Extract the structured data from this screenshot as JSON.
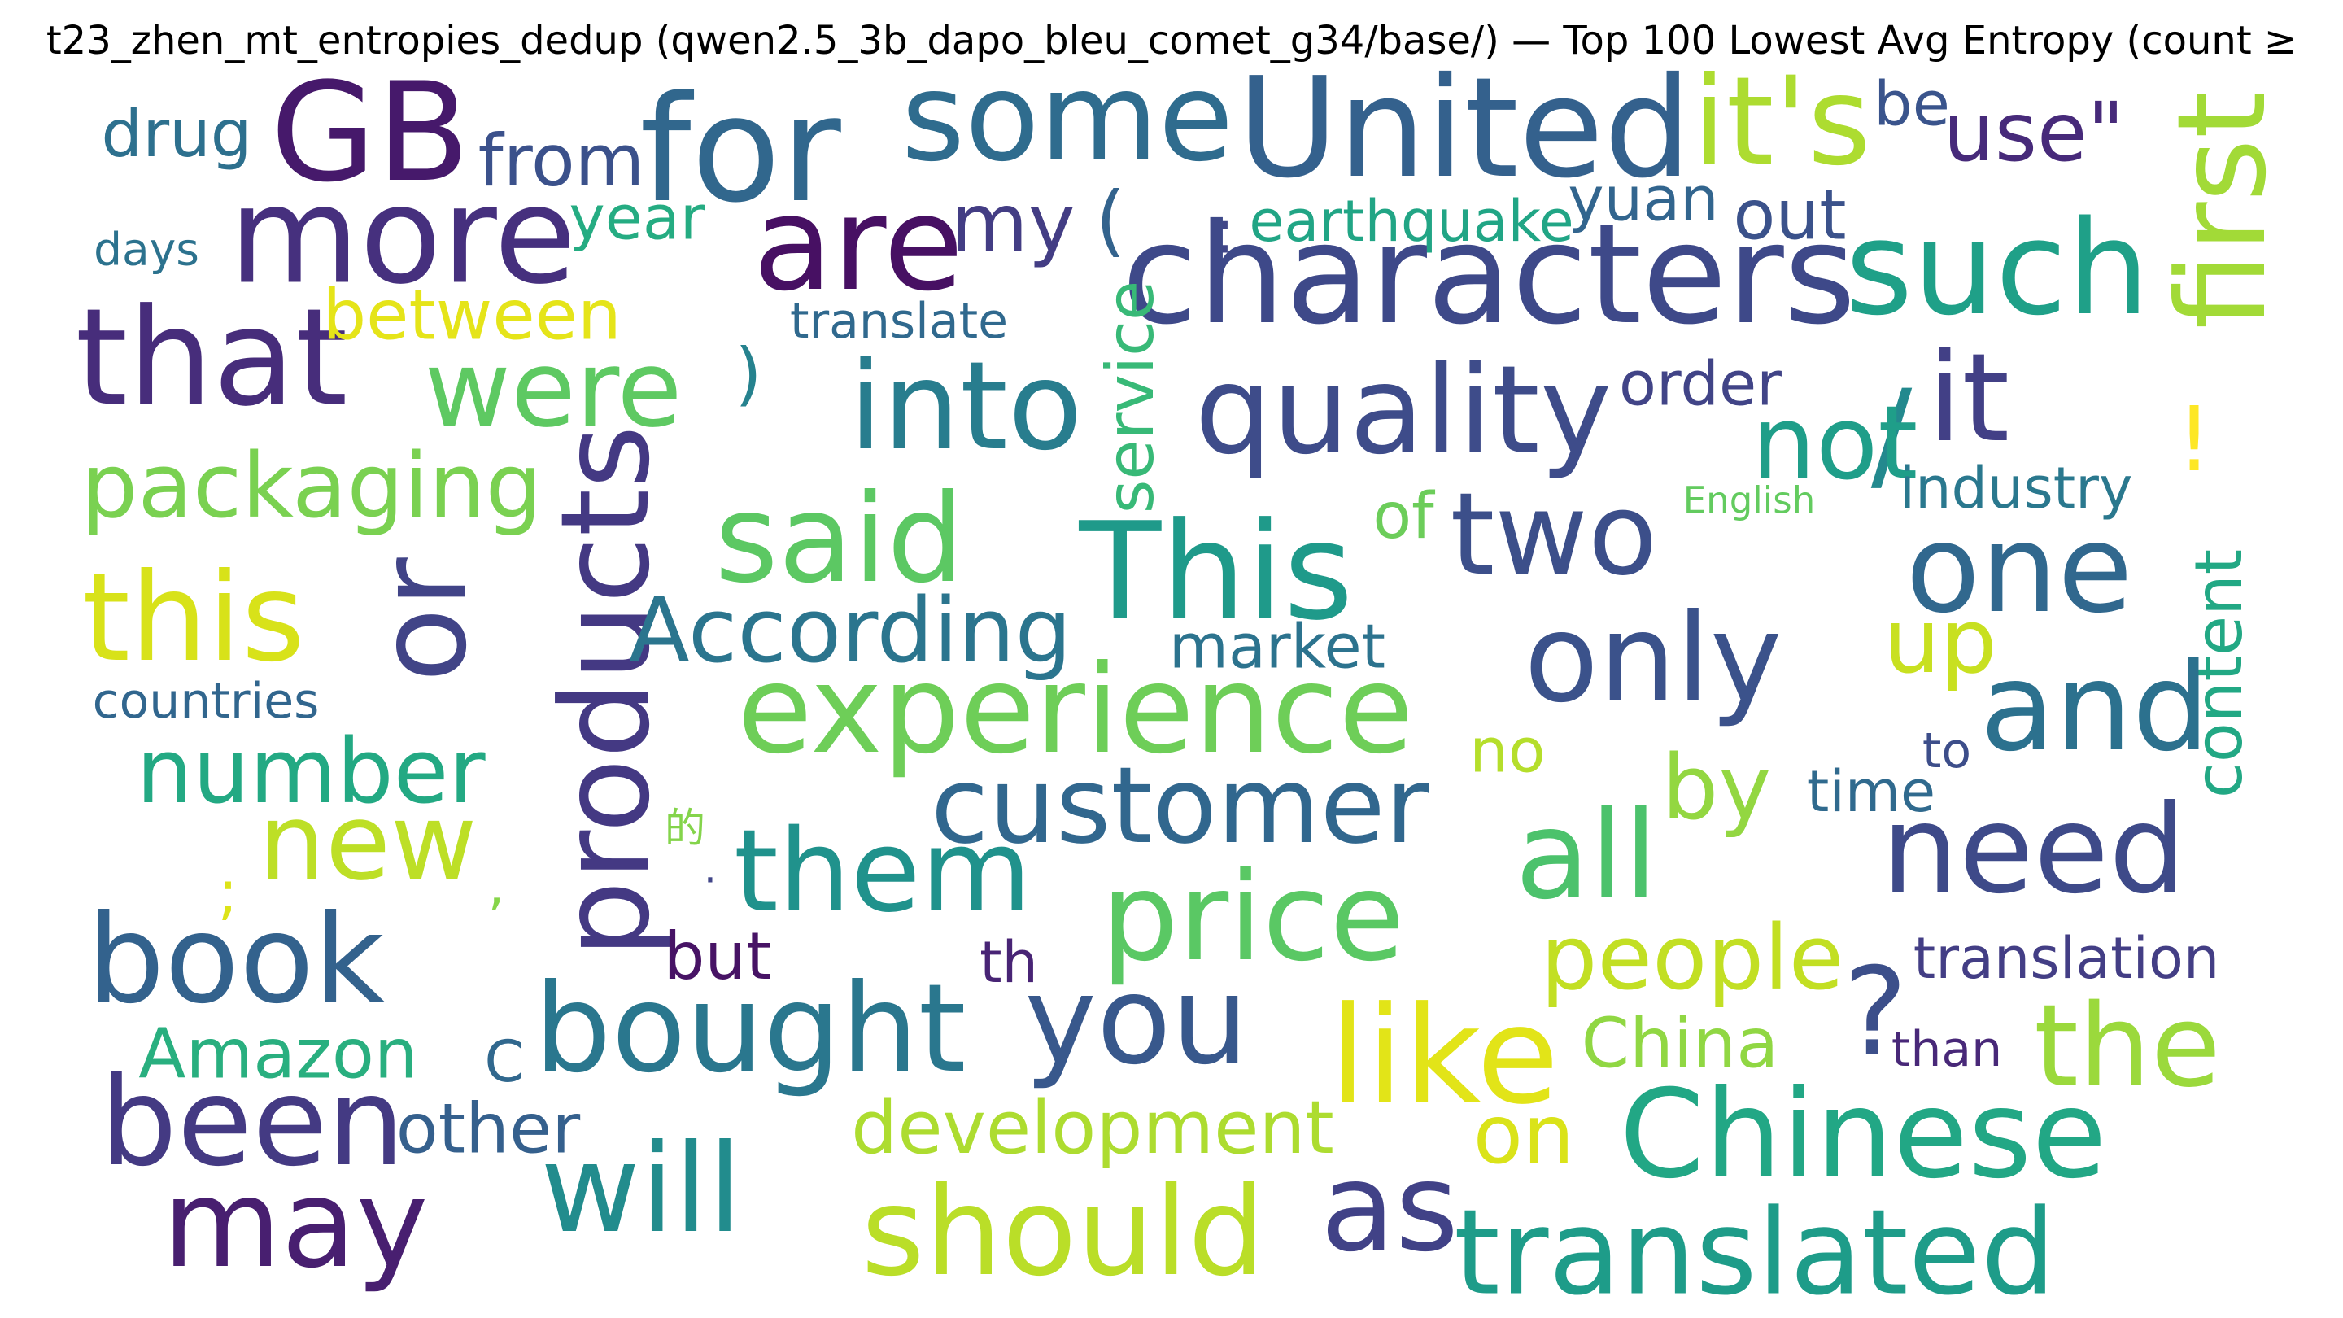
{
  "title": "t23_zhen_mt_entropies_dedup (qwen2.5_3b_dapo_bleu_comet_g34/base/) — Top 100 Lowest Avg Entropy (count ≥",
  "words": [
    {
      "text": "GB",
      "color": "#46196b"
    },
    {
      "text": "for",
      "color": "#31678d"
    },
    {
      "text": "some",
      "color": "#2f6c8e"
    },
    {
      "text": "United",
      "color": "#34618d"
    },
    {
      "text": "it's",
      "color": "#addc30"
    },
    {
      "text": "be",
      "color": "#3a548c"
    },
    {
      "text": "use\"",
      "color": "#472a7a"
    },
    {
      "text": "first",
      "color": "#a2da37"
    },
    {
      "text": "drug",
      "color": "#2d708e"
    },
    {
      "text": "from",
      "color": "#3b518b"
    },
    {
      "text": "more",
      "color": "#46307e"
    },
    {
      "text": "are",
      "color": "#471063"
    },
    {
      "text": "my",
      "color": "#433d84"
    },
    {
      "text": "(",
      "color": "#33638d"
    },
    {
      "text": ":",
      "color": "#404688"
    },
    {
      "text": "earthquake",
      "color": "#21a585"
    },
    {
      "text": "yuan",
      "color": "#32658e"
    },
    {
      "text": "out",
      "color": "#3b528b"
    },
    {
      "text": "days",
      "color": "#2c728e"
    },
    {
      "text": "year",
      "color": "#25ac82"
    },
    {
      "text": "characters",
      "color": "#3e4989"
    },
    {
      "text": "such",
      "color": "#1fa088"
    },
    {
      "text": "that",
      "color": "#472d7b"
    },
    {
      "text": "between",
      "color": "#e5e419"
    },
    {
      "text": "translate",
      "color": "#30698e"
    },
    {
      "text": ")",
      "color": "#26828e"
    },
    {
      "text": "service",
      "color": "#38b977"
    },
    {
      "text": "were",
      "color": "#5ec962"
    },
    {
      "text": "into",
      "color": "#287d8e"
    },
    {
      "text": "quality",
      "color": "#3e4c8a"
    },
    {
      "text": "order",
      "color": "#414487"
    },
    {
      "text": "/",
      "color": "#23898e"
    },
    {
      "text": "it",
      "color": "#424086"
    },
    {
      "text": "not",
      "color": "#1f9e89"
    },
    {
      "text": "packaging",
      "color": "#7ad151"
    },
    {
      "text": "!",
      "color": "#fde725"
    },
    {
      "text": "industry",
      "color": "#2a788e"
    },
    {
      "text": "of",
      "color": "#6ccd5a"
    },
    {
      "text": "English",
      "color": "#63cb5f"
    },
    {
      "text": "said",
      "color": "#5cc863"
    },
    {
      "text": "This",
      "color": "#1f9a8a"
    },
    {
      "text": "two",
      "color": "#3c4f8a"
    },
    {
      "text": "one",
      "color": "#31688e"
    },
    {
      "text": "this",
      "color": "#d8e219"
    },
    {
      "text": "or",
      "color": "#414487"
    },
    {
      "text": "products",
      "color": "#443983"
    },
    {
      "text": "According",
      "color": "#2b758e"
    },
    {
      "text": "market",
      "color": "#2c738e"
    },
    {
      "text": "only",
      "color": "#3b528b"
    },
    {
      "text": "up",
      "color": "#c8e020"
    },
    {
      "text": "content",
      "color": "#22a884"
    },
    {
      "text": "countries",
      "color": "#31668e"
    },
    {
      "text": "experience",
      "color": "#6ece58"
    },
    {
      "text": "and",
      "color": "#2c718e"
    },
    {
      "text": "no",
      "color": "#b5de2b"
    },
    {
      "text": "to",
      "color": "#3d4e8a"
    },
    {
      "text": "number",
      "color": "#23a983"
    },
    {
      "text": "by",
      "color": "#93d741"
    },
    {
      "text": "time",
      "color": "#306a8e"
    },
    {
      "text": "customer",
      "color": "#31678e"
    },
    {
      "text": "new",
      "color": "#bddf26"
    },
    {
      "text": "的",
      "color": "#84d44b"
    },
    {
      "text": "them",
      "color": "#20928c"
    },
    {
      "text": "all",
      "color": "#4cc26c"
    },
    {
      "text": "need",
      "color": "#3e4a89"
    },
    {
      "text": ";",
      "color": "#dde318"
    },
    {
      "text": ",",
      "color": "#86d549"
    },
    {
      "text": "·",
      "color": "#404588"
    },
    {
      "text": "price",
      "color": "#5ac864"
    },
    {
      "text": "book",
      "color": "#33628d"
    },
    {
      "text": "but",
      "color": "#471365"
    },
    {
      "text": "th",
      "color": "#482475"
    },
    {
      "text": "people",
      "color": "#c2df23"
    },
    {
      "text": "translation",
      "color": "#433e85"
    },
    {
      "text": "bought",
      "color": "#2a778e"
    },
    {
      "text": "you",
      "color": "#38588c"
    },
    {
      "text": "?",
      "color": "#3c4f8a"
    },
    {
      "text": "than",
      "color": "#482878"
    },
    {
      "text": "like",
      "color": "#e2e418"
    },
    {
      "text": "the",
      "color": "#9bd93c"
    },
    {
      "text": "Amazon",
      "color": "#29af7f"
    },
    {
      "text": "C",
      "color": "#31688e"
    },
    {
      "text": "China",
      "color": "#90d743"
    },
    {
      "text": "been",
      "color": "#443a83"
    },
    {
      "text": "other",
      "color": "#35608d"
    },
    {
      "text": "development",
      "color": "#addc30"
    },
    {
      "text": "on",
      "color": "#dae319"
    },
    {
      "text": "Chinese",
      "color": "#22a785"
    },
    {
      "text": "will",
      "color": "#228c8d"
    },
    {
      "text": "may",
      "color": "#481f70"
    },
    {
      "text": "should",
      "color": "#bade28"
    },
    {
      "text": "as",
      "color": "#414287"
    },
    {
      "text": "translated",
      "color": "#1e9c89"
    }
  ]
}
